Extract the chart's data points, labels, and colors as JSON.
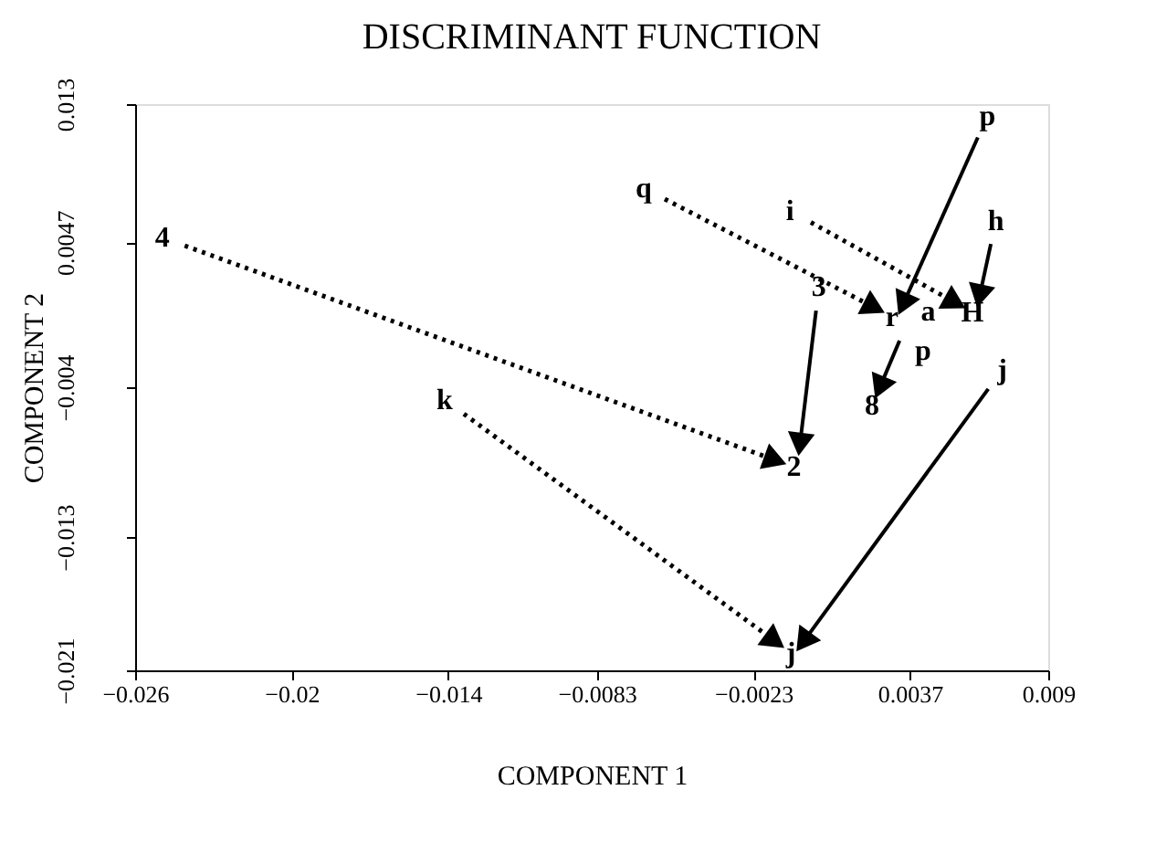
{
  "chart_data": {
    "type": "line",
    "title": "DISCRIMINANT FUNCTION",
    "xlabel": "COMPONENT 1",
    "ylabel": "COMPONENT 2",
    "xlim": [
      -0.026,
      0.009
    ],
    "xticks": [
      -0.026,
      -0.02,
      -0.014,
      -0.0083,
      -0.0023,
      0.0037,
      {
        "value": 0.009,
        "label": "0.009"
      }
    ],
    "ylim": [
      -0.021,
      0.013
    ],
    "yticks": [
      -0.021,
      -0.013,
      -0.004,
      0.0047,
      0.013
    ],
    "grid": false,
    "marker": "triangle",
    "series": [
      {
        "color": "#000000",
        "line_style": "dotted",
        "x": [
          -0.0241,
          -0.0016
        ],
        "values": [
          0.0045,
          -0.0083
        ]
      },
      {
        "color": "#000000",
        "line_style": "dotted",
        "x": [
          -0.0134,
          -0.0016
        ],
        "values": [
          -0.0056,
          -0.0191
        ]
      },
      {
        "color": "#000000",
        "line_style": "dotted",
        "x": [
          -0.0057,
          0.0022
        ],
        "values": [
          0.0073,
          0.0009
        ]
      },
      {
        "color": "#000000",
        "line_style": "dotted",
        "x": [
          -0.0001,
          0.0053
        ],
        "values": [
          0.0059,
          0.0012
        ]
      },
      {
        "color": "#000000",
        "line_style": "solid",
        "x": [
          0.0063,
          0.0035
        ],
        "values": [
          0.011,
          0.0012
        ]
      },
      {
        "color": "#000000",
        "line_style": "solid",
        "x": [
          0.0068,
          0.0064
        ],
        "values": [
          0.0046,
          0.0017
        ]
      },
      {
        "color": "#000000",
        "line_style": "solid",
        "x": [
          0.0001,
          -0.0005
        ],
        "values": [
          0.0006,
          -0.0072
        ]
      },
      {
        "color": "#000000",
        "line_style": "solid",
        "x": [
          0.0033,
          0.0026
        ],
        "values": [
          -0.0012,
          -0.0038
        ]
      },
      {
        "color": "#000000",
        "line_style": "solid",
        "x": [
          0.0067,
          -0.0003
        ],
        "values": [
          -0.0041,
          -0.0191
        ]
      }
    ],
    "annotations": [
      {
        "text": "4",
        "x": -0.0241,
        "y": 0.0045
      },
      {
        "text": "2",
        "x": -0.0016,
        "y": -0.0083
      },
      {
        "text": "k",
        "x": -0.0134,
        "y": -0.0056
      },
      {
        "text": "j",
        "x": -0.0016,
        "y": -0.0191
      },
      {
        "text": "q",
        "x": -0.0057,
        "y": 0.0073
      },
      {
        "text": "r",
        "x": 0.0022,
        "y": 0.0009
      },
      {
        "text": "i",
        "x": -0.0001,
        "y": 0.0059
      },
      {
        "text": "H",
        "x": 0.0053,
        "y": 0.0012
      },
      {
        "text": "p",
        "x": 0.0063,
        "y": 0.011
      },
      {
        "text": "a",
        "x": 0.0035,
        "y": 0.0012
      },
      {
        "text": "h",
        "x": 0.0068,
        "y": 0.0046
      },
      {
        "text": "3",
        "x": 0.0001,
        "y": 0.0006
      },
      {
        "text": "p",
        "x": 0.0033,
        "y": -0.0012
      },
      {
        "text": "8",
        "x": 0.0026,
        "y": -0.0038
      },
      {
        "text": "j",
        "x": 0.0067,
        "y": -0.0041
      }
    ]
  }
}
